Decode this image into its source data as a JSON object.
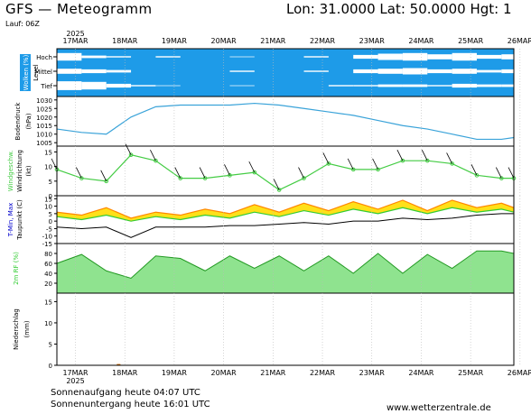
{
  "header": {
    "title": "GFS — Meteogramm",
    "location": "Lon: 31.0000  Lat: 50.0000  Hgt: 1",
    "run": "Lauf: 06Z"
  },
  "time_axis": {
    "year": "2025",
    "labels": [
      "17MAR",
      "18MAR",
      "19MAR",
      "20MAR",
      "21MAR",
      "22MAR",
      "23MAR",
      "24MAR",
      "25MAR",
      "26MAR"
    ]
  },
  "footer": {
    "sunrise": "Sonnenaufgang heute 04:07 UTC",
    "sunset": "Sonnenuntergang heute 16:01 UTC",
    "credit": "www.wetterzentrale.de"
  },
  "colors": {
    "cloud_sky": "#1e9be8",
    "pressure": "#3aa3d9",
    "wind_gust": "#44cc44",
    "tmax_fill": "#ff8800",
    "tmax_band": "#ffdd00",
    "tmin_fill": "#33cc33",
    "rh": "#33cc33"
  },
  "chart_data": [
    {
      "type": "area",
      "title": "Wolken (%)",
      "ylabels": [
        "Hoch",
        "Mittel",
        "Tief"
      ],
      "axis_side_label": "Level",
      "x": [
        0,
        12,
        24,
        36,
        48,
        60,
        72,
        84,
        96,
        108,
        120,
        132,
        144,
        156,
        168,
        180,
        192,
        204,
        216,
        222
      ],
      "series": [
        {
          "name": "Hoch",
          "values": [
            60,
            20,
            10,
            0,
            10,
            0,
            0,
            5,
            0,
            0,
            10,
            0,
            30,
            50,
            60,
            40,
            60,
            30,
            40,
            20
          ]
        },
        {
          "name": "Mittel",
          "values": [
            40,
            30,
            20,
            0,
            0,
            0,
            0,
            10,
            0,
            0,
            10,
            0,
            30,
            40,
            50,
            30,
            40,
            20,
            30,
            10
          ]
        },
        {
          "name": "Tief",
          "values": [
            70,
            60,
            30,
            10,
            5,
            0,
            0,
            5,
            0,
            0,
            0,
            10,
            10,
            20,
            20,
            10,
            30,
            20,
            20,
            10
          ]
        }
      ]
    },
    {
      "type": "line",
      "title": "Bodendruck",
      "ylabel": "(hPa)",
      "ylim": [
        1003,
        1032
      ],
      "yticks": [
        1005,
        1010,
        1015,
        1020,
        1025,
        1030
      ],
      "x": [
        0,
        12,
        24,
        36,
        48,
        60,
        72,
        84,
        96,
        108,
        120,
        132,
        144,
        156,
        168,
        180,
        192,
        204,
        216,
        222
      ],
      "series": [
        {
          "name": "Bodendruck",
          "values": [
            1013,
            1011,
            1010,
            1020,
            1026,
            1027,
            1027,
            1027,
            1028,
            1027,
            1025,
            1023,
            1021,
            1018,
            1015,
            1013,
            1010,
            1007,
            1007,
            1008
          ]
        }
      ]
    },
    {
      "type": "line",
      "title": "Windgeschw.",
      "ylabel": "(kt)",
      "ylim": [
        0,
        17
      ],
      "yticks": [
        0,
        5,
        10,
        15
      ],
      "x": [
        0,
        12,
        24,
        36,
        48,
        60,
        72,
        84,
        96,
        108,
        120,
        132,
        144,
        156,
        168,
        180,
        192,
        204,
        216,
        222
      ],
      "series": [
        {
          "name": "Wind",
          "values": [
            9,
            6,
            5,
            14,
            12,
            6,
            6,
            7,
            8,
            2,
            6,
            11,
            9,
            9,
            12,
            12,
            11,
            7,
            6,
            6
          ]
        }
      ]
    },
    {
      "type": "area",
      "title": "T-Min, Max",
      "ylabel": "Taupunkt (C)",
      "ylim": [
        -15,
        17
      ],
      "yticks": [
        -15,
        -10,
        -5,
        0,
        5,
        10,
        15
      ],
      "x": [
        0,
        12,
        24,
        36,
        48,
        60,
        72,
        84,
        96,
        108,
        120,
        132,
        144,
        156,
        168,
        180,
        192,
        204,
        216,
        222
      ],
      "series": [
        {
          "name": "T-Max",
          "values": [
            6,
            4,
            9,
            2,
            6,
            4,
            8,
            5,
            11,
            6,
            12,
            7,
            13,
            8,
            14,
            7,
            14,
            9,
            12,
            9
          ]
        },
        {
          "name": "T-Min",
          "values": [
            3,
            1,
            4,
            0,
            3,
            1,
            4,
            2,
            6,
            3,
            7,
            4,
            8,
            5,
            9,
            5,
            9,
            6,
            8,
            6
          ]
        },
        {
          "name": "Taupunkt",
          "values": [
            -4,
            -5,
            -4,
            -11,
            -4,
            -4,
            -4,
            -3,
            -3,
            -2,
            -1,
            -2,
            0,
            0,
            2,
            1,
            2,
            4,
            5,
            5
          ]
        }
      ]
    },
    {
      "type": "area",
      "title": "2m RF (%)",
      "ylim": [
        0,
        100
      ],
      "yticks": [
        20,
        40,
        60,
        80
      ],
      "x": [
        0,
        12,
        24,
        36,
        48,
        60,
        72,
        84,
        96,
        108,
        120,
        132,
        144,
        156,
        168,
        180,
        192,
        204,
        216,
        222
      ],
      "series": [
        {
          "name": "RF",
          "values": [
            60,
            78,
            45,
            30,
            75,
            70,
            45,
            75,
            50,
            75,
            45,
            75,
            40,
            80,
            40,
            78,
            50,
            85,
            85,
            80
          ]
        }
      ]
    },
    {
      "type": "bar",
      "title": "Niederschlag",
      "ylabel": "(mm)",
      "ylim": [
        0,
        17
      ],
      "yticks": [
        0,
        5,
        10,
        15
      ],
      "x": [
        30
      ],
      "series": [
        {
          "name": "Niederschlag",
          "values": [
            0.3
          ]
        }
      ]
    }
  ]
}
